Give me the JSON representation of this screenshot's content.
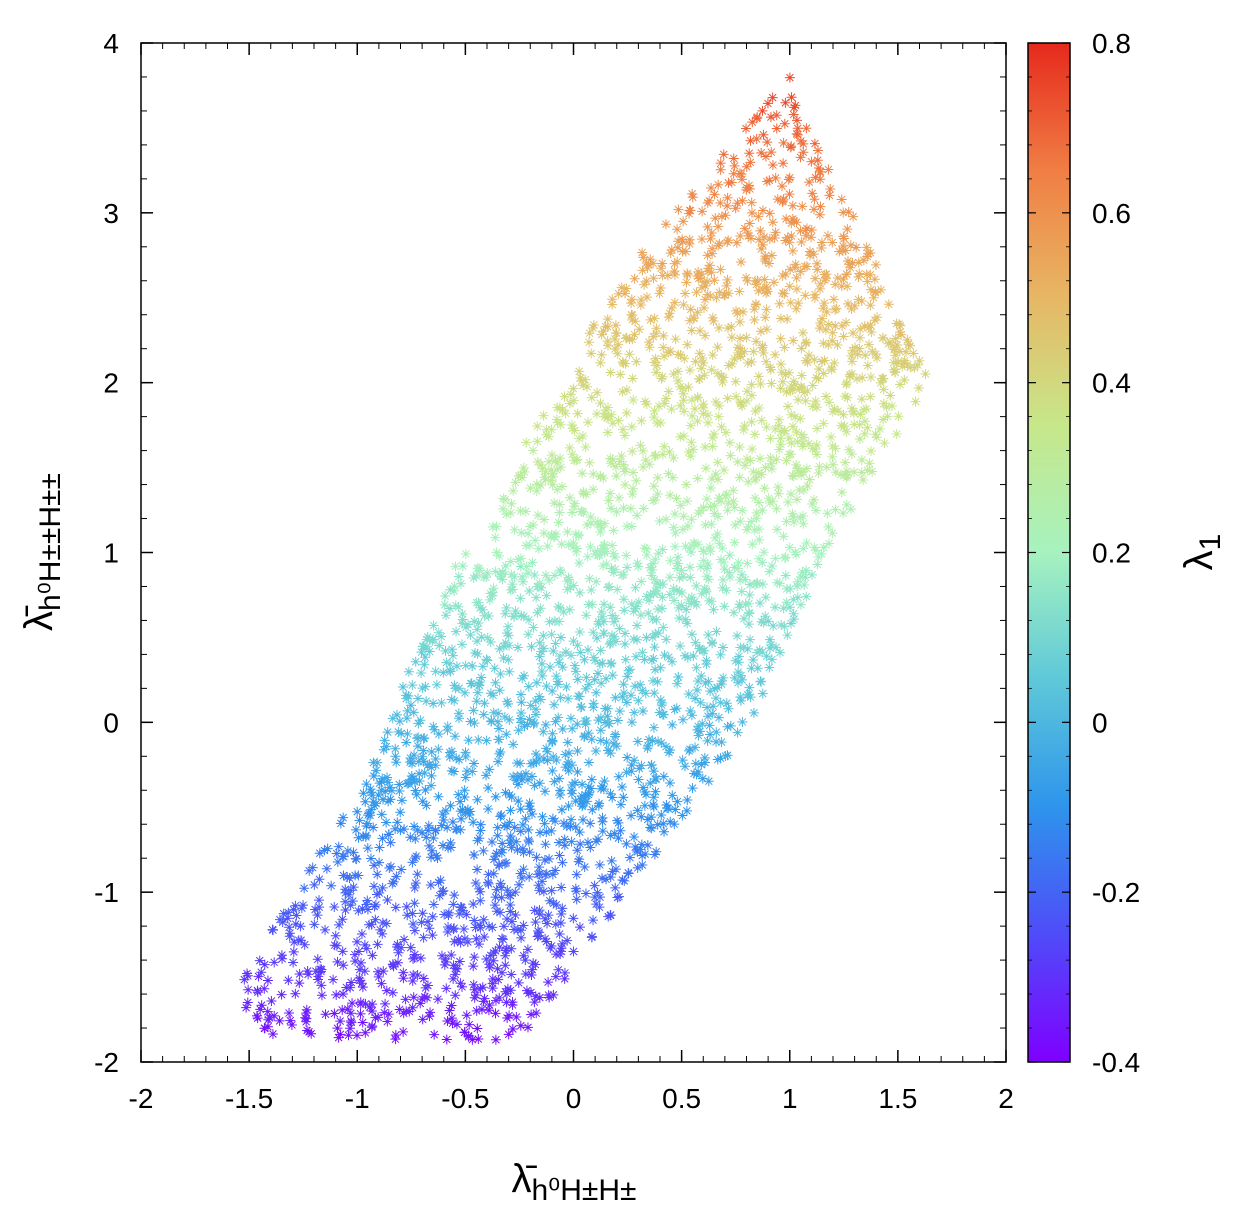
{
  "chart_data": {
    "type": "scatter",
    "title": "",
    "marker": "star",
    "xlabel": {
      "main": "λ̄",
      "sub": "h⁰H±H±"
    },
    "ylabel": {
      "main": "λ̄",
      "sub": "h⁰H±±H±±"
    },
    "colorbar_label": {
      "main": "λ",
      "sub": "1"
    },
    "xlim": [
      -2,
      2
    ],
    "ylim": [
      -2,
      4
    ],
    "clim": [
      -0.4,
      0.8
    ],
    "x_ticks": [
      -2,
      -1.5,
      -1,
      -0.5,
      0,
      0.5,
      1,
      1.5,
      2
    ],
    "x_tick_labels": [
      "-2",
      "-1.5",
      "-1",
      "-0.5",
      "0",
      "0.5",
      "1",
      "1.5",
      "2"
    ],
    "y_ticks": [
      -2,
      -1,
      0,
      1,
      2,
      3,
      4
    ],
    "y_tick_labels": [
      "-2",
      "-1",
      "0",
      "1",
      "2",
      "3",
      "4"
    ],
    "c_ticks": [
      -0.4,
      -0.2,
      0,
      0.2,
      0.4,
      0.6,
      0.8
    ],
    "c_tick_labels": [
      "-0.4",
      "-0.2",
      "0",
      "0.2",
      "0.4",
      "0.6",
      "0.8"
    ],
    "colormap": [
      "#7f00ff",
      "#4f4cf9",
      "#2e94ec",
      "#5ec8d9",
      "#a6f2bf",
      "#c7e78a",
      "#e7b765",
      "#f07e44",
      "#e6291d"
    ],
    "region_polygon": [
      [
        -1.5,
        -1.85
      ],
      [
        -0.25,
        -1.88
      ],
      [
        0.8,
        -0.05
      ],
      [
        1.2,
        1.08
      ],
      [
        1.65,
        2.0
      ],
      [
        1.0,
        3.82
      ],
      [
        0.2,
        2.6
      ],
      [
        -0.55,
        0.92
      ],
      [
        -1.05,
        -0.5
      ],
      [
        -1.55,
        -1.55
      ]
    ],
    "color_relation": "lambda_1 ≈ (y + 2) / 5 - 0.4"
  }
}
